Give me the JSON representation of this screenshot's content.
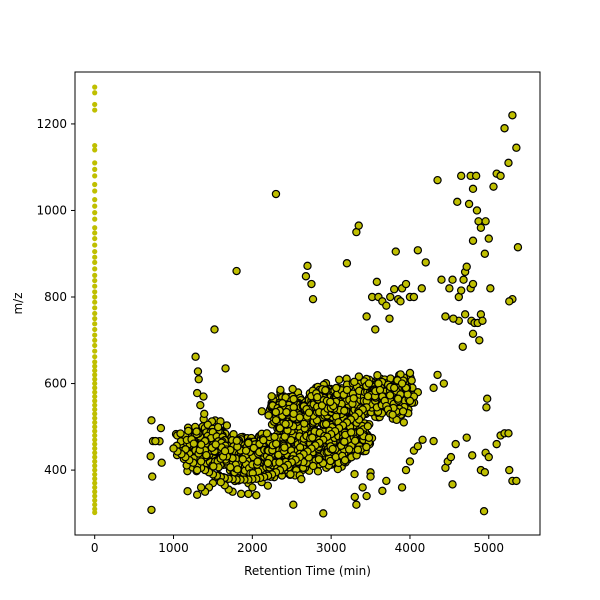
{
  "chart_data": {
    "type": "scatter",
    "xlabel": "Retention Time (min)",
    "ylabel": "m/z",
    "xlim": [
      -250,
      5650
    ],
    "ylim": [
      250,
      1320
    ],
    "xticks": [
      0,
      1000,
      2000,
      3000,
      4000,
      5000
    ],
    "yticks": [
      400,
      600,
      800,
      1000,
      1200
    ],
    "grid": false,
    "colors": {
      "marker_fill": "#bfbf00",
      "marker_edge": "#000000",
      "axes": "#000000",
      "background": "#ffffff"
    },
    "series": [
      {
        "marker": "circle-no-edge",
        "points": [
          [
            0,
            1285
          ],
          [
            0,
            1272
          ],
          [
            0,
            1245
          ],
          [
            0,
            1232
          ],
          [
            0,
            1150
          ],
          [
            0,
            1140
          ],
          [
            0,
            1110
          ],
          [
            0,
            1095
          ],
          [
            0,
            1080
          ],
          [
            0,
            1060
          ],
          [
            0,
            1045
          ],
          [
            0,
            1025
          ],
          [
            0,
            1010
          ],
          [
            0,
            995
          ],
          [
            0,
            980
          ],
          [
            0,
            960
          ],
          [
            0,
            948
          ],
          [
            0,
            935
          ],
          [
            0,
            920
          ],
          [
            0,
            905
          ],
          [
            0,
            892
          ],
          [
            0,
            880
          ],
          [
            0,
            865
          ],
          [
            0,
            850
          ],
          [
            0,
            838
          ],
          [
            0,
            825
          ],
          [
            0,
            812
          ],
          [
            0,
            800
          ],
          [
            0,
            788
          ],
          [
            0,
            775
          ],
          [
            0,
            762
          ],
          [
            0,
            750
          ],
          [
            0,
            738
          ],
          [
            0,
            725
          ],
          [
            0,
            712
          ],
          [
            0,
            700
          ],
          [
            0,
            688
          ],
          [
            0,
            675
          ],
          [
            0,
            662
          ],
          [
            0,
            650
          ],
          [
            0,
            640
          ],
          [
            0,
            630
          ],
          [
            0,
            620
          ],
          [
            0,
            610
          ],
          [
            0,
            600
          ],
          [
            0,
            590
          ],
          [
            0,
            580
          ],
          [
            0,
            570
          ],
          [
            0,
            560
          ],
          [
            0,
            550
          ],
          [
            0,
            540
          ],
          [
            0,
            530
          ],
          [
            0,
            520
          ],
          [
            0,
            510
          ],
          [
            0,
            500
          ],
          [
            0,
            490
          ],
          [
            0,
            480
          ],
          [
            0,
            470
          ],
          [
            0,
            460
          ],
          [
            0,
            450
          ],
          [
            0,
            440
          ],
          [
            0,
            430
          ],
          [
            0,
            420
          ],
          [
            0,
            410
          ],
          [
            0,
            400
          ],
          [
            0,
            390
          ],
          [
            0,
            380
          ],
          [
            0,
            370
          ],
          [
            0,
            360
          ],
          [
            0,
            350
          ],
          [
            0,
            340
          ],
          [
            0,
            330
          ],
          [
            0,
            320
          ],
          [
            0,
            310
          ],
          [
            0,
            302
          ]
        ]
      },
      {
        "marker": "circle-edge",
        "points": [
          [
            2300,
            1038
          ],
          [
            1800,
            860
          ],
          [
            1520,
            725
          ],
          [
            1280,
            662
          ],
          [
            1310,
            628
          ],
          [
            1320,
            610
          ],
          [
            1660,
            635
          ],
          [
            1380,
            570
          ],
          [
            1300,
            578
          ],
          [
            1340,
            550
          ],
          [
            1390,
            530
          ],
          [
            720,
            515
          ],
          [
            840,
            497
          ],
          [
            740,
            467
          ],
          [
            770,
            467
          ],
          [
            710,
            432
          ],
          [
            850,
            417
          ],
          [
            730,
            385
          ],
          [
            720,
            308
          ],
          [
            2520,
            320
          ],
          [
            2900,
            300
          ],
          [
            3300,
            338
          ],
          [
            3320,
            320
          ],
          [
            3400,
            360
          ],
          [
            3450,
            340
          ],
          [
            3500,
            385
          ],
          [
            3700,
            375
          ],
          [
            3650,
            352
          ],
          [
            3900,
            360
          ],
          [
            3950,
            400
          ],
          [
            4000,
            420
          ],
          [
            4050,
            445
          ],
          [
            4100,
            455
          ],
          [
            4160,
            470
          ],
          [
            4300,
            467
          ],
          [
            4450,
            405
          ],
          [
            4480,
            420
          ],
          [
            4520,
            430
          ],
          [
            4540,
            367
          ],
          [
            4580,
            460
          ],
          [
            4720,
            475
          ],
          [
            4790,
            434
          ],
          [
            4900,
            400
          ],
          [
            4940,
            305
          ],
          [
            4950,
            395
          ],
          [
            4960,
            440
          ],
          [
            4970,
            545
          ],
          [
            4980,
            565
          ],
          [
            5000,
            430
          ],
          [
            5100,
            460
          ],
          [
            5150,
            480
          ],
          [
            5200,
            485
          ],
          [
            5250,
            485
          ],
          [
            5260,
            400
          ],
          [
            5300,
            375
          ],
          [
            5350,
            375
          ],
          [
            2680,
            848
          ],
          [
            2700,
            872
          ],
          [
            2750,
            830
          ],
          [
            2770,
            795
          ],
          [
            3320,
            950
          ],
          [
            3350,
            965
          ],
          [
            3200,
            878
          ],
          [
            3520,
            800
          ],
          [
            3580,
            835
          ],
          [
            3600,
            800
          ],
          [
            3650,
            790
          ],
          [
            3700,
            780
          ],
          [
            3750,
            800
          ],
          [
            3800,
            818
          ],
          [
            3820,
            905
          ],
          [
            3850,
            795
          ],
          [
            3880,
            790
          ],
          [
            3900,
            820
          ],
          [
            3950,
            830
          ],
          [
            4000,
            800
          ],
          [
            4050,
            800
          ],
          [
            4100,
            908
          ],
          [
            4200,
            880
          ],
          [
            4150,
            820
          ],
          [
            3560,
            725
          ],
          [
            3740,
            750
          ],
          [
            3480,
            600
          ],
          [
            3800,
            590
          ],
          [
            3450,
            755
          ],
          [
            4400,
            840
          ],
          [
            4500,
            820
          ],
          [
            4540,
            840
          ],
          [
            4620,
            800
          ],
          [
            4650,
            815
          ],
          [
            4680,
            840
          ],
          [
            4700,
            858
          ],
          [
            4720,
            870
          ],
          [
            4770,
            820
          ],
          [
            4800,
            830
          ],
          [
            4800,
            930
          ],
          [
            4850,
            1000
          ],
          [
            4870,
            975
          ],
          [
            4900,
            960
          ],
          [
            4950,
            900
          ],
          [
            4960,
            975
          ],
          [
            5000,
            935
          ],
          [
            5020,
            820
          ],
          [
            5060,
            1055
          ],
          [
            5100,
            1085
          ],
          [
            5150,
            1080
          ],
          [
            5200,
            1190
          ],
          [
            5250,
            1110
          ],
          [
            5300,
            1220
          ],
          [
            5350,
            1145
          ],
          [
            5370,
            915
          ],
          [
            5300,
            795
          ],
          [
            5260,
            790
          ],
          [
            4350,
            1070
          ],
          [
            4600,
            1020
          ],
          [
            4650,
            1080
          ],
          [
            4770,
            1080
          ],
          [
            4800,
            1050
          ],
          [
            4840,
            1080
          ],
          [
            4880,
            700
          ],
          [
            4700,
            760
          ],
          [
            4620,
            745
          ],
          [
            4550,
            750
          ],
          [
            4780,
            745
          ],
          [
            4820,
            740
          ],
          [
            4860,
            740
          ],
          [
            4900,
            760
          ],
          [
            4920,
            745
          ],
          [
            4670,
            685
          ],
          [
            4750,
            1015
          ],
          [
            4450,
            755
          ],
          [
            4800,
            715
          ],
          [
            4350,
            620
          ],
          [
            4300,
            590
          ],
          [
            4430,
            600
          ],
          [
            4100,
            580
          ],
          [
            4050,
            570
          ],
          [
            4000,
            560
          ],
          [
            3970,
            575
          ],
          [
            3950,
            590
          ],
          [
            3900,
            600
          ],
          [
            3880,
            575
          ],
          [
            3850,
            565
          ],
          [
            3600,
            600
          ],
          [
            3620,
            585
          ],
          [
            3650,
            570
          ],
          [
            3680,
            560
          ],
          [
            3700,
            548
          ],
          [
            3720,
            540
          ],
          [
            3750,
            530
          ],
          [
            3780,
            528
          ],
          [
            3450,
            545
          ],
          [
            3400,
            540
          ],
          [
            3350,
            532
          ],
          [
            3300,
            524
          ],
          [
            3250,
            517
          ],
          [
            3200,
            510
          ],
          [
            3150,
            503
          ],
          [
            3100,
            497
          ],
          [
            3050,
            490
          ],
          [
            3000,
            483
          ],
          [
            2950,
            477
          ],
          [
            2900,
            470
          ],
          [
            2850,
            463
          ],
          [
            2800,
            457
          ],
          [
            2750,
            450
          ],
          [
            2700,
            443
          ],
          [
            2650,
            437
          ],
          [
            2600,
            430
          ],
          [
            2550,
            424
          ],
          [
            2500,
            418
          ],
          [
            2450,
            412
          ],
          [
            2400,
            406
          ],
          [
            2350,
            400
          ],
          [
            2300,
            395
          ],
          [
            2250,
            390
          ],
          [
            2200,
            387
          ],
          [
            2150,
            384
          ],
          [
            2100,
            382
          ],
          [
            2050,
            380
          ],
          [
            2000,
            379
          ],
          [
            1950,
            378
          ],
          [
            1900,
            378
          ],
          [
            1850,
            378
          ],
          [
            1800,
            378
          ],
          [
            1750,
            379
          ],
          [
            1700,
            380
          ],
          [
            1650,
            382
          ],
          [
            1600,
            384
          ],
          [
            1550,
            387
          ],
          [
            1500,
            390
          ],
          [
            1450,
            395
          ],
          [
            1400,
            400
          ],
          [
            1350,
            405
          ],
          [
            1300,
            410
          ],
          [
            1250,
            417
          ],
          [
            1200,
            423
          ],
          [
            1150,
            430
          ],
          [
            1100,
            437
          ],
          [
            1050,
            443
          ],
          [
            1000,
            450
          ],
          [
            2000,
            360
          ],
          [
            1950,
            345
          ],
          [
            2050,
            342
          ],
          [
            1750,
            350
          ],
          [
            1700,
            355
          ],
          [
            1650,
            365
          ],
          [
            1600,
            372
          ],
          [
            1500,
            370
          ],
          [
            1450,
            360
          ],
          [
            1400,
            350
          ],
          [
            1350,
            360
          ],
          [
            1300,
            343
          ],
          [
            1300,
            400
          ],
          [
            1350,
            420
          ]
        ]
      }
    ],
    "clusters": [
      {
        "center": [
          1400,
          455
        ],
        "spread": [
          260,
          45
        ],
        "count": 420
      },
      {
        "center": [
          1950,
          430
        ],
        "spread": [
          330,
          40
        ],
        "count": 520
      },
      {
        "center": [
          2500,
          445
        ],
        "spread": [
          280,
          45
        ],
        "count": 420
      },
      {
        "center": [
          3000,
          470
        ],
        "spread": [
          260,
          50
        ],
        "count": 320
      },
      {
        "center": [
          2500,
          540
        ],
        "spread": [
          230,
          30
        ],
        "count": 300
      },
      {
        "center": [
          3000,
          555
        ],
        "spread": [
          270,
          35
        ],
        "count": 380
      },
      {
        "center": [
          3550,
          570
        ],
        "spread": [
          230,
          35
        ],
        "count": 320
      },
      {
        "center": [
          3850,
          570
        ],
        "spread": [
          150,
          35
        ],
        "count": 200
      },
      {
        "center": [
          3300,
          470
        ],
        "spread": [
          220,
          40
        ],
        "count": 160
      }
    ]
  }
}
